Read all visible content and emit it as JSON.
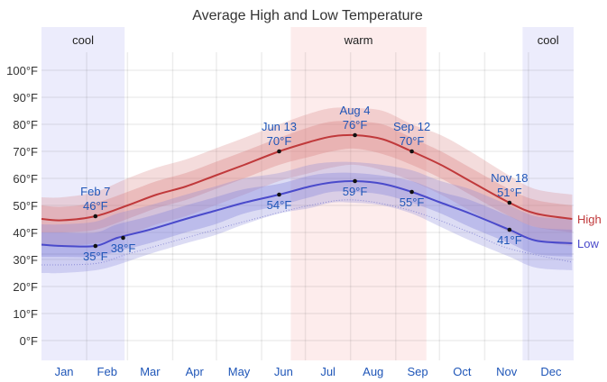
{
  "chart_data": {
    "type": "line",
    "title": "Average High and Low Temperature",
    "xlabel": "",
    "ylabel": "",
    "x_unit": "day_of_year",
    "xlim": [
      1,
      365
    ],
    "ylim": [
      -8,
      108
    ],
    "y_ticks": [
      0,
      10,
      20,
      30,
      40,
      50,
      60,
      70,
      80,
      90,
      100
    ],
    "y_tick_labels": [
      "0°F",
      "10°F",
      "20°F",
      "30°F",
      "40°F",
      "50°F",
      "60°F",
      "70°F",
      "80°F",
      "90°F",
      "100°F"
    ],
    "x_tick_labels": [
      "Jan",
      "Feb",
      "Mar",
      "Apr",
      "May",
      "Jun",
      "Jul",
      "Aug",
      "Sep",
      "Oct",
      "Nov",
      "Dec"
    ],
    "month_start_days": [
      1,
      32,
      60,
      91,
      121,
      152,
      182,
      213,
      244,
      274,
      305,
      335
    ],
    "grid": true,
    "freezing_line": 32,
    "seasons": [
      {
        "label": "cool",
        "start_day": 1,
        "end_day": 57,
        "color": "#ececfc"
      },
      {
        "label": "warm",
        "start_day": 172,
        "end_day": 264,
        "color": "#fdecec"
      },
      {
        "label": "cool",
        "start_day": 331,
        "end_day": 365,
        "color": "#ececfc"
      }
    ],
    "series": [
      {
        "name": "High",
        "color": "#c0393b",
        "band_color": "#d98080",
        "x": [
          1,
          15,
          38,
          60,
          80,
          100,
          120,
          140,
          164,
          185,
          200,
          216,
          235,
          255,
          275,
          295,
          322,
          340,
          365
        ],
        "values": [
          45,
          44.5,
          46,
          50,
          54,
          57,
          61,
          65,
          70,
          73.5,
          75.5,
          76,
          74.5,
          70,
          65,
          59,
          51,
          47,
          45
        ],
        "band_inner": [
          [
            40,
            50
          ],
          [
            40,
            49.5
          ],
          [
            41,
            51
          ],
          [
            45,
            55
          ],
          [
            49,
            59
          ],
          [
            52,
            62
          ],
          [
            56,
            66
          ],
          [
            60,
            70
          ],
          [
            65,
            75
          ],
          [
            68,
            79
          ],
          [
            70,
            81
          ],
          [
            71,
            81
          ],
          [
            69,
            80
          ],
          [
            65,
            75
          ],
          [
            60,
            70
          ],
          [
            54,
            64
          ],
          [
            46,
            56
          ],
          [
            42,
            52
          ],
          [
            40,
            50
          ]
        ],
        "band_outer": [
          [
            35,
            53
          ],
          [
            35,
            53
          ],
          [
            36,
            55
          ],
          [
            39,
            60
          ],
          [
            43,
            64
          ],
          [
            46,
            67
          ],
          [
            50,
            71
          ],
          [
            54,
            75
          ],
          [
            59,
            80
          ],
          [
            62,
            84
          ],
          [
            64,
            86
          ],
          [
            65,
            86
          ],
          [
            63,
            85
          ],
          [
            59,
            80
          ],
          [
            54,
            76
          ],
          [
            48,
            70
          ],
          [
            40,
            61
          ],
          [
            37,
            56
          ],
          [
            35,
            54
          ]
        ]
      },
      {
        "name": "Low",
        "color": "#4a4acb",
        "band_color": "#8080d9",
        "x": [
          1,
          15,
          38,
          53,
          75,
          100,
          120,
          140,
          164,
          185,
          200,
          216,
          235,
          255,
          275,
          295,
          322,
          340,
          365
        ],
        "values": [
          35.5,
          35,
          35,
          38,
          41,
          45,
          48,
          51,
          54,
          57,
          58.5,
          59,
          58,
          55,
          51,
          47,
          41,
          37,
          36
        ],
        "band_inner": [
          [
            31,
            40
          ],
          [
            31,
            40
          ],
          [
            31,
            40
          ],
          [
            33,
            43
          ],
          [
            36,
            46
          ],
          [
            40,
            50
          ],
          [
            43,
            53
          ],
          [
            47,
            56
          ],
          [
            50,
            58
          ],
          [
            53,
            61
          ],
          [
            55,
            62
          ],
          [
            55,
            62
          ],
          [
            54,
            61
          ],
          [
            51,
            59
          ],
          [
            47,
            55
          ],
          [
            42,
            52
          ],
          [
            36,
            46
          ],
          [
            32,
            42
          ],
          [
            31,
            41
          ]
        ],
        "band_outer": [
          [
            25,
            43
          ],
          [
            25,
            43
          ],
          [
            26,
            44
          ],
          [
            28,
            47
          ],
          [
            32,
            50
          ],
          [
            36,
            54
          ],
          [
            39,
            57
          ],
          [
            43,
            60
          ],
          [
            47,
            62
          ],
          [
            49,
            65
          ],
          [
            51,
            66
          ],
          [
            51,
            66
          ],
          [
            50,
            65
          ],
          [
            47,
            63
          ],
          [
            42,
            59
          ],
          [
            37,
            56
          ],
          [
            31,
            50
          ],
          [
            27,
            46
          ],
          [
            26,
            45
          ]
        ]
      }
    ],
    "low_percentile_dotted": {
      "x": [
        1,
        38,
        60,
        100,
        140,
        185,
        216,
        255,
        295,
        322,
        365
      ],
      "values": [
        28,
        28.5,
        32,
        38,
        44,
        50,
        52,
        48,
        40,
        34,
        29
      ]
    },
    "annotations": [
      {
        "series": "High",
        "day": 38,
        "value": 46,
        "date_label": "Feb 7",
        "value_label": "46°F",
        "position": "above"
      },
      {
        "series": "Low",
        "day": 38,
        "value": 35,
        "date_label": "",
        "value_label": "35°F",
        "position": "below"
      },
      {
        "series": "Low",
        "day": 57,
        "value": 38,
        "date_label": "",
        "value_label": "38°F",
        "position": "below"
      },
      {
        "series": "High",
        "day": 164,
        "value": 70,
        "date_label": "Jun 13",
        "value_label": "70°F",
        "position": "above"
      },
      {
        "series": "Low",
        "day": 164,
        "value": 54,
        "date_label": "",
        "value_label": "54°F",
        "position": "below"
      },
      {
        "series": "High",
        "day": 216,
        "value": 76,
        "date_label": "Aug 4",
        "value_label": "76°F",
        "position": "above"
      },
      {
        "series": "Low",
        "day": 216,
        "value": 59,
        "date_label": "",
        "value_label": "59°F",
        "position": "below"
      },
      {
        "series": "High",
        "day": 255,
        "value": 70,
        "date_label": "Sep 12",
        "value_label": "70°F",
        "position": "above"
      },
      {
        "series": "Low",
        "day": 255,
        "value": 55,
        "date_label": "",
        "value_label": "55°F",
        "position": "below"
      },
      {
        "series": "High",
        "day": 322,
        "value": 51,
        "date_label": "Nov 18",
        "value_label": "51°F",
        "position": "above"
      },
      {
        "series": "Low",
        "day": 322,
        "value": 41,
        "date_label": "",
        "value_label": "41°F",
        "position": "below"
      }
    ],
    "legend": {
      "placement": "right",
      "entries": [
        {
          "label": "High",
          "color": "#c0393b"
        },
        {
          "label": "Low",
          "color": "#4a4acb"
        }
      ]
    }
  }
}
